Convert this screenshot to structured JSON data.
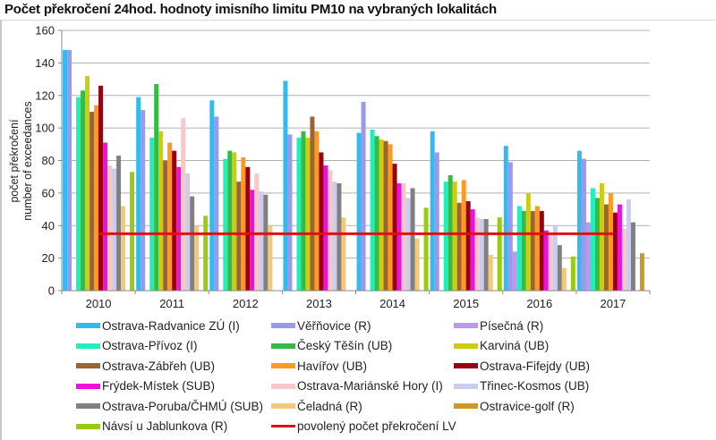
{
  "window": {
    "title": "Počet překročení 24hod. hodnoty imisního limitu PM10 na vybraných lokalitách"
  },
  "chart_data": {
    "type": "bar",
    "title": "Počet překročení 24hod. hodnoty imisního limitu PM10 na vybraných lokalitách",
    "xlabel": "",
    "ylabel": [
      "počet překročení",
      "number of exceedances"
    ],
    "ylim": [
      0,
      160
    ],
    "yticks": [
      0,
      20,
      40,
      60,
      80,
      100,
      120,
      140,
      160
    ],
    "grid": true,
    "legend_position": "bottom",
    "categories": [
      "2010",
      "2011",
      "2012",
      "2013",
      "2014",
      "2015",
      "2016",
      "2017"
    ],
    "series": [
      {
        "name": "Ostrava-Radvanice ZÚ (I)",
        "color": "#33bbee",
        "values": [
          148,
          119,
          117,
          129,
          97,
          98,
          89,
          86
        ]
      },
      {
        "name": "Věřňovice (R)",
        "color": "#9999ee",
        "values": [
          148,
          111,
          107,
          96,
          116,
          85,
          79,
          81
        ]
      },
      {
        "name": "Písečná (R)",
        "color": "#bb99ee",
        "values": [
          null,
          null,
          null,
          null,
          null,
          null,
          24,
          42
        ]
      },
      {
        "name": "Ostrava-Přívoz (I)",
        "color": "#22eebb",
        "values": [
          119,
          94,
          81,
          94,
          99,
          67,
          52,
          63
        ]
      },
      {
        "name": "Český Těšín (UB)",
        "color": "#33bb44",
        "values": [
          123,
          127,
          86,
          98,
          95,
          71,
          49,
          57
        ]
      },
      {
        "name": "Karviná (UB)",
        "color": "#cccc11",
        "values": [
          132,
          98,
          85,
          94,
          93,
          67,
          60,
          66
        ]
      },
      {
        "name": "Ostrava-Zábřeh (UB)",
        "color": "#996633",
        "values": [
          110,
          80,
          67,
          107,
          92,
          54,
          49,
          53
        ]
      },
      {
        "name": "Havířov (UB)",
        "color": "#ff9922",
        "values": [
          114,
          91,
          82,
          98,
          90,
          68,
          52,
          60
        ]
      },
      {
        "name": "Ostrava-Fifejdy (UB)",
        "color": "#990011",
        "values": [
          126,
          86,
          76,
          85,
          78,
          55,
          49,
          48
        ]
      },
      {
        "name": "Frýdek-Místek (SUB)",
        "color": "#ee11dd",
        "values": [
          91,
          76,
          62,
          77,
          66,
          50,
          37,
          53
        ]
      },
      {
        "name": "Ostrava-Mariánské Hory (I)",
        "color": "#f6c8c8",
        "values": [
          77,
          106,
          72,
          74,
          66,
          45,
          34,
          38
        ]
      },
      {
        "name": "Třinec-Kosmos (UB)",
        "color": "#ccccee",
        "values": [
          75,
          72,
          61,
          67,
          57,
          44,
          40,
          56
        ]
      },
      {
        "name": "Ostrava-Poruba/ČHMÚ (SUB)",
        "color": "#808080",
        "values": [
          83,
          58,
          59,
          66,
          63,
          44,
          28,
          42
        ]
      },
      {
        "name": "Čeladná (R)",
        "color": "#f5c77a",
        "values": [
          52,
          40,
          40,
          45,
          32,
          22,
          14,
          null
        ]
      },
      {
        "name": "Ostravice-golf (R)",
        "color": "#cc9922",
        "values": [
          null,
          null,
          null,
          null,
          null,
          null,
          null,
          23
        ]
      },
      {
        "name": "Návsí u Jablunkova (R)",
        "color": "#99cc11",
        "values": [
          73,
          46,
          null,
          null,
          51,
          45,
          21,
          null
        ]
      }
    ],
    "reference_line": {
      "name": "povolený počet překročení LV",
      "color": "#dd1111",
      "value": 35,
      "from_category": "2010",
      "to_category": "2017"
    }
  },
  "legend": {
    "items": [
      {
        "label": "Ostrava-Radvanice ZÚ (I)",
        "color": "#33bbee",
        "kind": "bar"
      },
      {
        "label": "Věřňovice (R)",
        "color": "#9999ee",
        "kind": "bar"
      },
      {
        "label": "Písečná (R)",
        "color": "#bb99ee",
        "kind": "bar"
      },
      {
        "label": "Ostrava-Přívoz (I)",
        "color": "#22eebb",
        "kind": "bar"
      },
      {
        "label": "Český Těšín (UB)",
        "color": "#33bb44",
        "kind": "bar"
      },
      {
        "label": "Karviná (UB)",
        "color": "#cccc11",
        "kind": "bar"
      },
      {
        "label": "Ostrava-Zábřeh (UB)",
        "color": "#996633",
        "kind": "bar"
      },
      {
        "label": "Havířov (UB)",
        "color": "#ff9922",
        "kind": "bar"
      },
      {
        "label": "Ostrava-Fifejdy (UB)",
        "color": "#990011",
        "kind": "bar"
      },
      {
        "label": "Frýdek-Místek (SUB)",
        "color": "#ee11dd",
        "kind": "bar"
      },
      {
        "label": "Ostrava-Mariánské Hory (I)",
        "color": "#f6c8c8",
        "kind": "bar"
      },
      {
        "label": "Třinec-Kosmos (UB)",
        "color": "#ccccee",
        "kind": "bar"
      },
      {
        "label": "Ostrava-Poruba/ČHMÚ (SUB)",
        "color": "#808080",
        "kind": "bar"
      },
      {
        "label": "Čeladná (R)",
        "color": "#f5c77a",
        "kind": "bar"
      },
      {
        "label": "Ostravice-golf (R)",
        "color": "#cc9922",
        "kind": "bar"
      },
      {
        "label": "Návsí u Jablunkova (R)",
        "color": "#99cc11",
        "kind": "bar"
      },
      {
        "label": "povolený počet překročení LV",
        "color": "#dd1111",
        "kind": "line"
      }
    ]
  }
}
